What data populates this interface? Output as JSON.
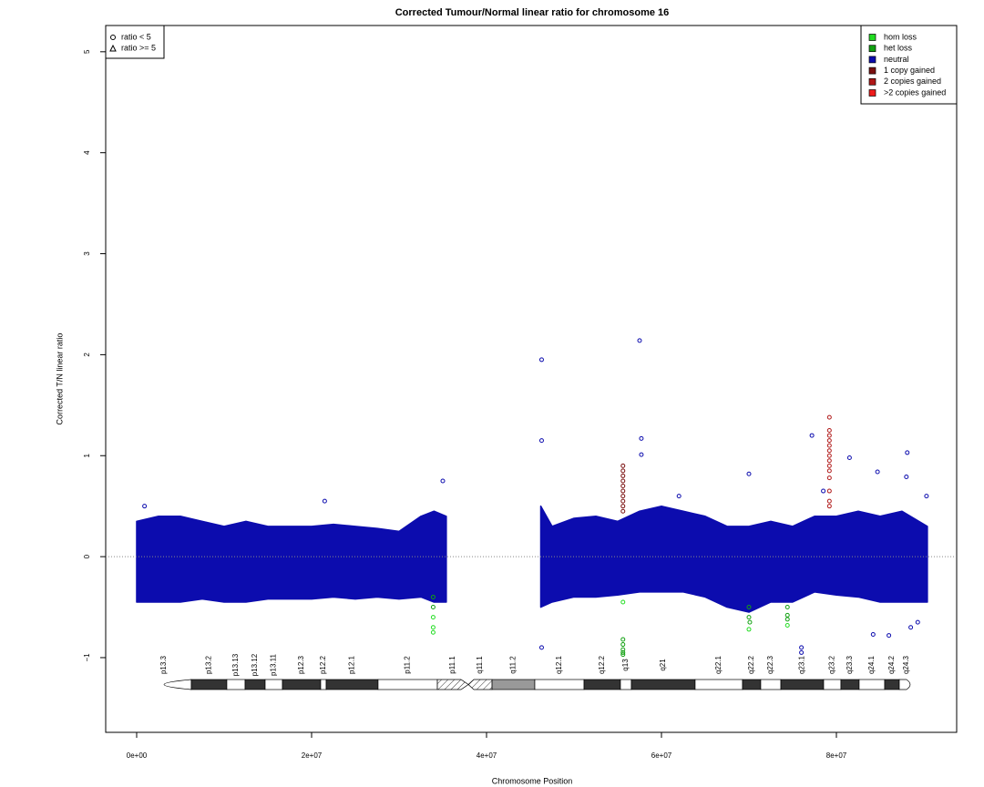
{
  "chart_data": {
    "type": "scatter",
    "title": "Corrected Tumour/Normal linear ratio for chromosome  16",
    "xlabel": "Chromosome Position",
    "ylabel": "Corrected T/N linear ratio",
    "xlim": [
      -3540000,
      93750000
    ],
    "ylim": [
      -1.74,
      5.26
    ],
    "xticks": [
      {
        "value": 0,
        "label": "0e+00"
      },
      {
        "value": 20000000,
        "label": "2e+07"
      },
      {
        "value": 40000000,
        "label": "4e+07"
      },
      {
        "value": 60000000,
        "label": "6e+07"
      },
      {
        "value": 80000000,
        "label": "8e+07"
      }
    ],
    "yticks": [
      {
        "value": -1,
        "label": "−1"
      },
      0,
      1,
      2,
      3,
      4,
      5
    ],
    "hline": 0,
    "shape_legend": [
      {
        "shape": "circle",
        "label": "ratio < 5"
      },
      {
        "shape": "triangle",
        "label": "ratio >= 5"
      }
    ],
    "series": [
      {
        "name": "hom loss",
        "color": "#22dd22",
        "x": [
          33900000.0,
          33900000.0,
          33900000.0,
          70000000.0,
          74400000.0,
          55600000.0
        ],
        "values": [
          -0.6,
          -0.7,
          -0.75,
          -0.72,
          -0.68,
          -0.45
        ]
      },
      {
        "name": "het loss",
        "color": "#11a011",
        "x": [
          33900000.0,
          33900000.0,
          55600000.0,
          55600000.0,
          55600000.0,
          55600000.0,
          55600000.0,
          70000000.0,
          70000000.0,
          70100000.0,
          74400000.0,
          74400000.0,
          74400000.0
        ],
        "values": [
          -0.4,
          -0.5,
          -0.82,
          -0.87,
          -0.92,
          -0.95,
          -0.97,
          -0.5,
          -0.6,
          -0.65,
          -0.5,
          -0.58,
          -0.62
        ]
      },
      {
        "name": "neutral",
        "color": "#0c0cae",
        "x": [
          46300000.0,
          57500000.0,
          46300000.0,
          57700000.0,
          57700000.0,
          77200000.0,
          88100000.0,
          81500000.0,
          84700000.0,
          70000000.0,
          88000000.0,
          46300000.0,
          76000000.0,
          76000000.0,
          88500000.0,
          89300000.0,
          84200000.0,
          86000000.0,
          35000000.0,
          900000.0,
          21500000.0,
          62000000.0,
          78500000.0,
          90300000.0
        ],
        "values": [
          1.95,
          2.14,
          1.15,
          1.17,
          1.01,
          1.2,
          1.03,
          0.98,
          0.84,
          0.82,
          0.79,
          -0.9,
          -0.9,
          -0.95,
          -0.7,
          -0.65,
          -0.77,
          -0.78,
          0.75,
          0.5,
          0.55,
          0.6,
          0.65,
          0.6
        ],
        "band": {
          "x": [
            0,
            2500000.0,
            5000000.0,
            7500000.0,
            10000000.0,
            12500000.0,
            15000000.0,
            17500000.0,
            20000000.0,
            22500000.0,
            25000000.0,
            27500000.0,
            30000000.0,
            32500000.0,
            34000000.0,
            35400000.0,
            null,
            46200000.0,
            47500000.0,
            50000000.0,
            52500000.0,
            55000000.0,
            57500000.0,
            60000000.0,
            62500000.0,
            65000000.0,
            67500000.0,
            70000000.0,
            72500000.0,
            75000000.0,
            77500000.0,
            80000000.0,
            82500000.0,
            85000000.0,
            87500000.0,
            90400000.0
          ],
          "low": [
            -0.45,
            -0.45,
            -0.45,
            -0.42,
            -0.45,
            -0.45,
            -0.42,
            -0.42,
            -0.42,
            -0.4,
            -0.42,
            -0.4,
            -0.42,
            -0.4,
            -0.45,
            -0.45,
            null,
            -0.5,
            -0.45,
            -0.4,
            -0.4,
            -0.38,
            -0.35,
            -0.35,
            -0.35,
            -0.4,
            -0.5,
            -0.55,
            -0.45,
            -0.45,
            -0.35,
            -0.38,
            -0.4,
            -0.45,
            -0.45,
            -0.45
          ],
          "high": [
            0.35,
            0.4,
            0.4,
            0.35,
            0.3,
            0.35,
            0.3,
            0.3,
            0.3,
            0.32,
            0.3,
            0.28,
            0.25,
            0.4,
            0.45,
            0.4,
            null,
            0.5,
            0.3,
            0.38,
            0.4,
            0.35,
            0.45,
            0.5,
            0.45,
            0.4,
            0.3,
            0.3,
            0.35,
            0.3,
            0.4,
            0.4,
            0.45,
            0.4,
            0.45,
            0.3
          ]
        }
      },
      {
        "name": "1 copy gained",
        "color": "#7a1010",
        "x": [
          55600000.0,
          55600000.0,
          55600000.0,
          55600000.0,
          55600000.0,
          55600000.0,
          55600000.0,
          55600000.0,
          55600000.0,
          55600000.0
        ],
        "values": [
          0.45,
          0.5,
          0.55,
          0.6,
          0.65,
          0.7,
          0.75,
          0.8,
          0.85,
          0.9
        ]
      },
      {
        "name": "2 copies gained",
        "color": "#b01818",
        "x": [
          79200000.0,
          79200000.0,
          79200000.0,
          79200000.0,
          79200000.0,
          79200000.0,
          79200000.0,
          79200000.0,
          79200000.0,
          79200000.0,
          79200000.0,
          79200000.0,
          79200000.0,
          79200000.0
        ],
        "values": [
          0.5,
          0.55,
          0.65,
          0.78,
          0.85,
          0.9,
          0.95,
          1.0,
          1.05,
          1.1,
          1.15,
          1.2,
          1.25,
          1.38
        ]
      },
      {
        "name": ">2 copies gained",
        "color": "#ee1c1c",
        "x": [],
        "values": []
      }
    ],
    "ideogram": [
      {
        "label": "p13.3",
        "start": 0,
        "end": 6250000,
        "stain": "gneg"
      },
      {
        "label": "p13.2",
        "start": 6250000,
        "end": 10310000,
        "stain": "gpos"
      },
      {
        "label": "p13.13",
        "start": 10310000,
        "end": 12400000,
        "stain": "gneg"
      },
      {
        "label": "p13.12",
        "start": 12400000,
        "end": 14690000,
        "stain": "gpos"
      },
      {
        "label": "p13.11",
        "start": 14690000,
        "end": 16670000,
        "stain": "gneg"
      },
      {
        "label": "p12.3",
        "start": 16670000,
        "end": 21040000,
        "stain": "gpos"
      },
      {
        "label": "p12.2",
        "start": 21040000,
        "end": 21670000,
        "stain": "gneg"
      },
      {
        "label": "p12.1",
        "start": 21670000,
        "end": 27600000,
        "stain": "gpos"
      },
      {
        "label": "p11.2",
        "start": 27600000,
        "end": 34380000,
        "stain": "gneg"
      },
      {
        "label": "p11.1",
        "start": 34380000,
        "end": 37920000,
        "stain": "acen"
      },
      {
        "label": "q11.1",
        "start": 37920000,
        "end": 40630000,
        "stain": "acen"
      },
      {
        "label": "q11.2",
        "start": 40630000,
        "end": 45520000,
        "stain": "gvar"
      },
      {
        "label": "q12.1",
        "start": 45520000,
        "end": 51150000,
        "stain": "gneg"
      },
      {
        "label": "q12.2",
        "start": 51150000,
        "end": 55310000,
        "stain": "gpos"
      },
      {
        "label": "q13",
        "start": 55310000,
        "end": 56560000,
        "stain": "gneg"
      },
      {
        "label": "q21",
        "start": 56560000,
        "end": 63850000,
        "stain": "gpos"
      },
      {
        "label": "q22.1",
        "start": 63850000,
        "end": 69270000,
        "stain": "gneg"
      },
      {
        "label": "q22.2",
        "start": 69270000,
        "end": 71350000,
        "stain": "gpos"
      },
      {
        "label": "q22.3",
        "start": 71350000,
        "end": 73650000,
        "stain": "gneg"
      },
      {
        "label": "q23.1",
        "start": 73650000,
        "end": 78540000,
        "stain": "gpos"
      },
      {
        "label": "q23.2",
        "start": 78540000,
        "end": 80520000,
        "stain": "gneg"
      },
      {
        "label": "q23.3",
        "start": 80520000,
        "end": 82600000,
        "stain": "gpos"
      },
      {
        "label": "q24.1",
        "start": 82600000,
        "end": 85520000,
        "stain": "gneg"
      },
      {
        "label": "q24.2",
        "start": 85520000,
        "end": 87190000,
        "stain": "gpos"
      },
      {
        "label": "q24.3",
        "start": 87190000,
        "end": 88850000,
        "stain": "gneg"
      }
    ]
  }
}
